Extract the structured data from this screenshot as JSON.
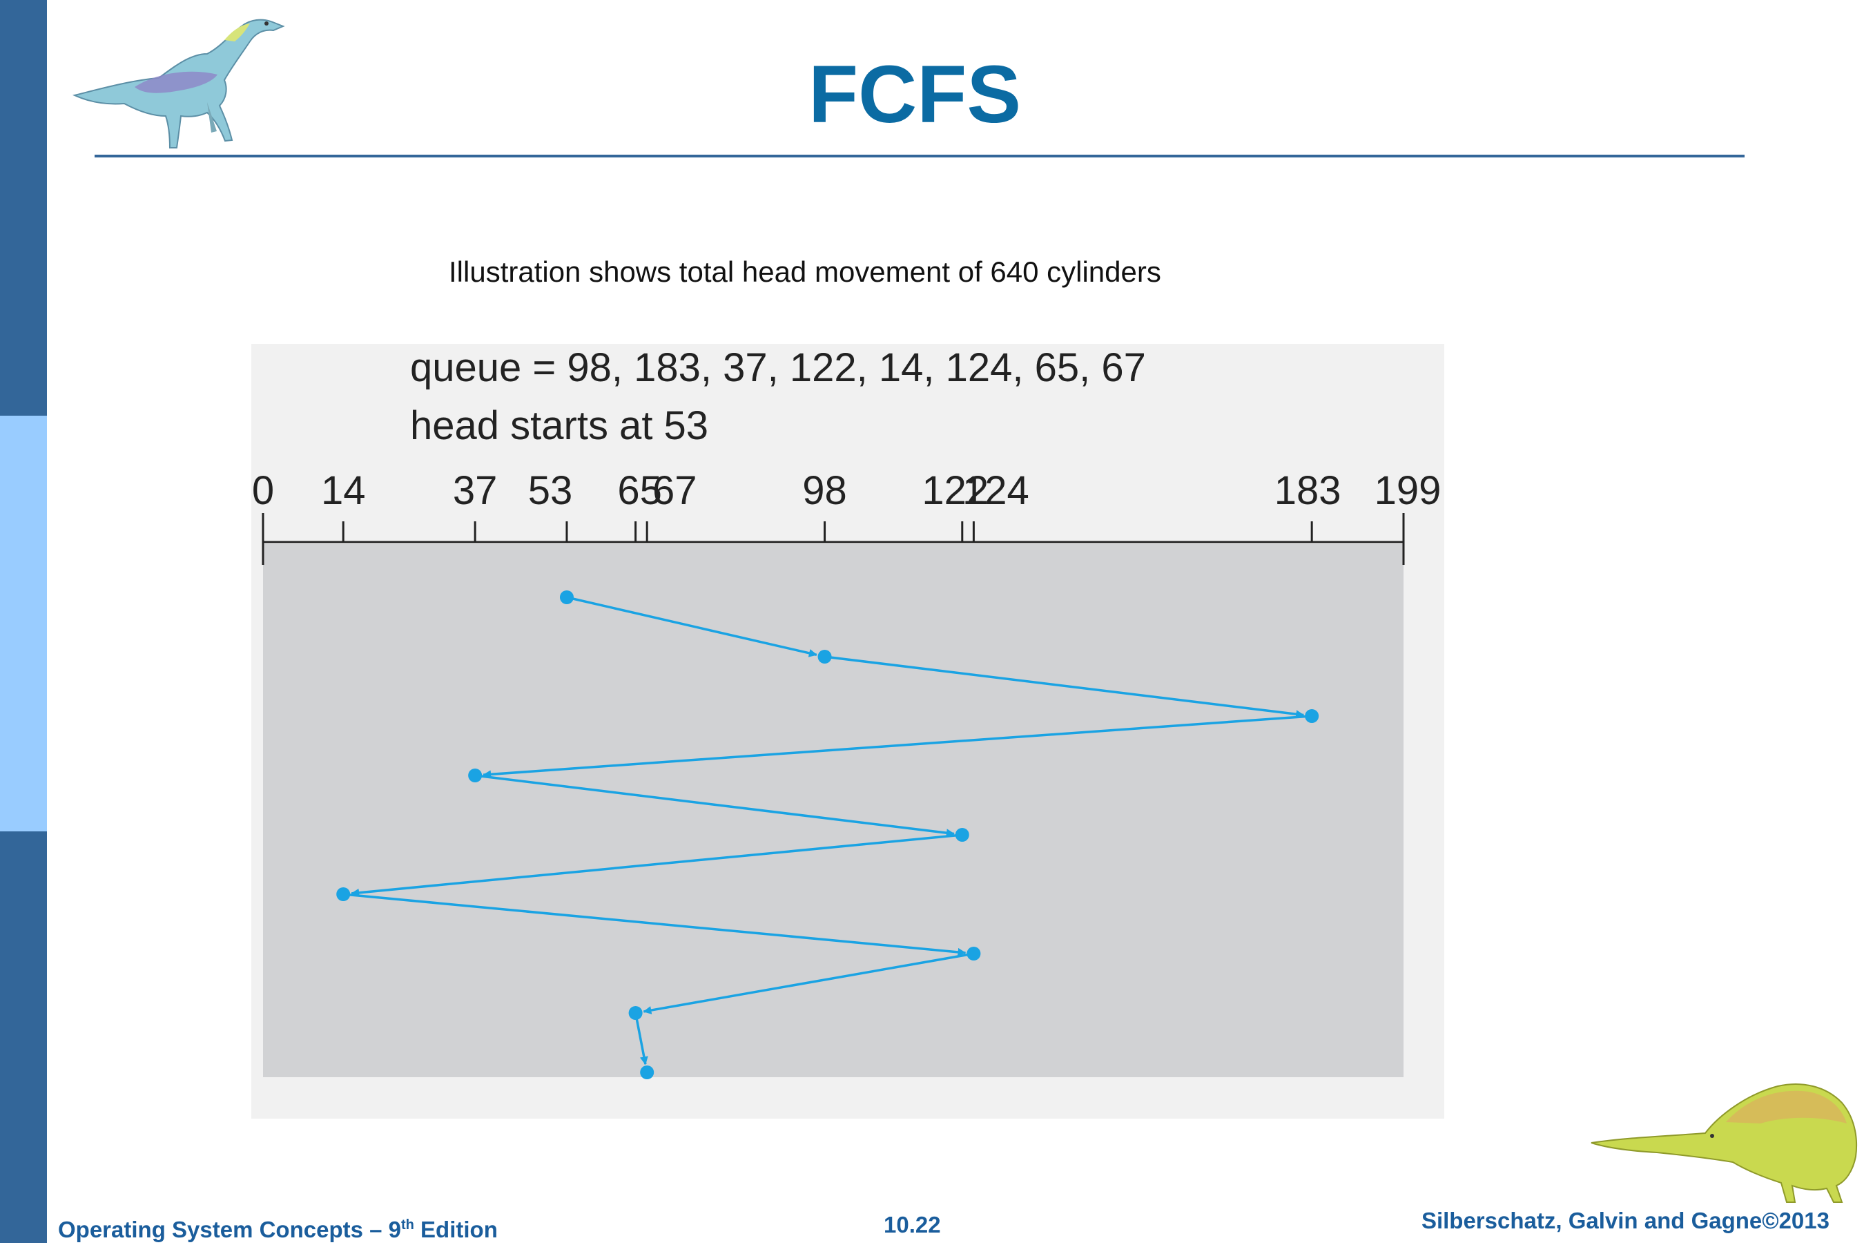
{
  "slide": {
    "title": "FCFS",
    "caption": "Illustration shows total head movement of 640 cylinders"
  },
  "figure": {
    "queue_line": "queue = 98, 183, 37, 122, 14, 124, 65, 67",
    "head_line": "head starts at 53",
    "axis_ticks": [
      0,
      14,
      37,
      53,
      65,
      67,
      98,
      122,
      124,
      183,
      199
    ],
    "cylinder_range": [
      0,
      199
    ],
    "service_sequence": [
      53,
      98,
      183,
      37,
      122,
      14,
      124,
      65,
      67
    ],
    "colors": {
      "path": "#1aa3e3",
      "panel": "#d1d2d4",
      "axis": "#222222"
    }
  },
  "footer": {
    "book_title": "Operating System Concepts  – 9",
    "edition_sup": "th",
    "edition_word": " Edition",
    "page_number": "10.22",
    "copyright": "Silberschatz, Galvin and Gagne©2013"
  },
  "decor": {
    "top_icon": "dinosaur-icon",
    "bottom_icon": "dinosaur-icon"
  }
}
